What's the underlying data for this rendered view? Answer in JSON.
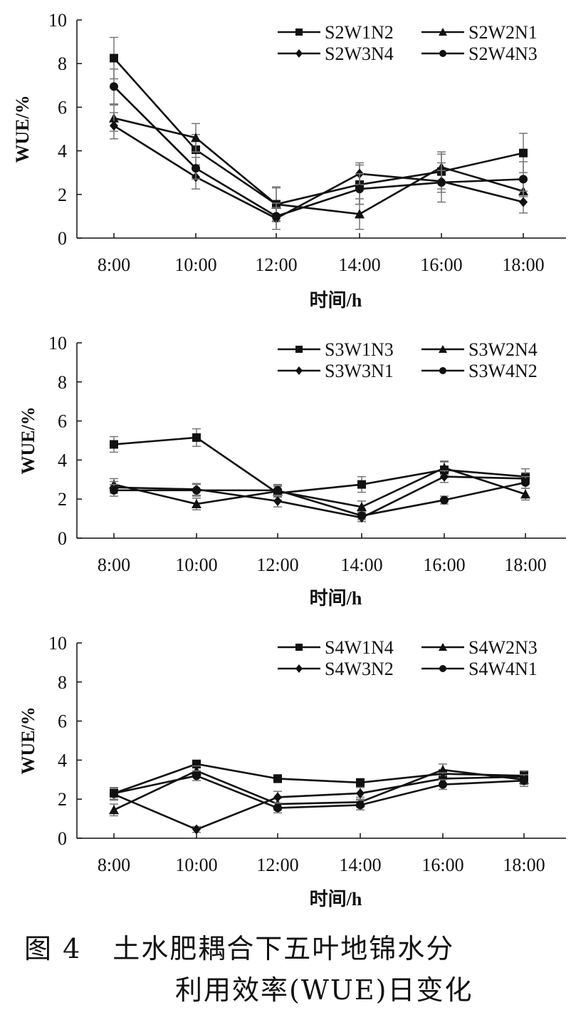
{
  "caption": {
    "fig_label": "图 4",
    "title_line1": "土水肥耦合下五叶地锦水分",
    "title_line2": "利用效率(WUE)日变化"
  },
  "colors": {
    "ink": "#111111",
    "error_bar": "#777777"
  },
  "chart_data": [
    {
      "type": "line",
      "title": "",
      "xlabel": "时间/h",
      "ylabel": "WUE/%",
      "categories": [
        "8:00",
        "10:00",
        "12:00",
        "14:00",
        "16:00",
        "18:00"
      ],
      "ylim": [
        0,
        10
      ],
      "yticks": [
        0,
        2,
        4,
        6,
        8,
        10
      ],
      "grid": false,
      "legend_position": "top-right",
      "series": [
        {
          "name": "S2W1N2",
          "marker": "square",
          "values": [
            8.25,
            4.05,
            1.55,
            2.45,
            3.05,
            3.9
          ],
          "errors": [
            0.95,
            0.7,
            0.8,
            0.9,
            0.8,
            0.9
          ]
        },
        {
          "name": "S2W2N1",
          "marker": "triangle",
          "values": [
            5.5,
            4.6,
            1.55,
            1.1,
            3.25,
            2.15
          ],
          "errors": [
            0.6,
            0.65,
            0.75,
            0.7,
            0.7,
            0.5
          ]
        },
        {
          "name": "S2W3N4",
          "marker": "diamond",
          "values": [
            5.15,
            2.8,
            0.9,
            2.95,
            2.6,
            1.65
          ],
          "errors": [
            0.6,
            0.55,
            0.5,
            0.5,
            0.5,
            0.5
          ]
        },
        {
          "name": "S2W4N3",
          "marker": "circle",
          "values": [
            6.95,
            3.2,
            1.0,
            2.25,
            2.55,
            2.7
          ],
          "errors": [
            0.8,
            0.5,
            0.6,
            0.7,
            0.9,
            0.8
          ]
        }
      ]
    },
    {
      "type": "line",
      "title": "",
      "xlabel": "时间/h",
      "ylabel": "WUE/%",
      "categories": [
        "8:00",
        "10:00",
        "12:00",
        "14:00",
        "16:00",
        "18:00"
      ],
      "ylim": [
        0,
        10
      ],
      "yticks": [
        0,
        2,
        4,
        6,
        8,
        10
      ],
      "grid": false,
      "legend_position": "top-right",
      "series": [
        {
          "name": "S3W1N3",
          "marker": "square",
          "values": [
            4.8,
            5.15,
            2.3,
            2.75,
            3.5,
            3.15
          ],
          "errors": [
            0.4,
            0.45,
            0.35,
            0.4,
            0.4,
            0.4
          ]
        },
        {
          "name": "S3W2N4",
          "marker": "triangle",
          "values": [
            2.75,
            1.75,
            2.4,
            1.6,
            3.6,
            2.25
          ],
          "errors": [
            0.3,
            0.3,
            0.3,
            0.3,
            0.35,
            0.3
          ]
        },
        {
          "name": "S3W3N1",
          "marker": "diamond",
          "values": [
            2.6,
            2.5,
            1.9,
            1.05,
            3.15,
            3.05
          ],
          "errors": [
            0.3,
            0.3,
            0.3,
            0.2,
            0.3,
            0.3
          ]
        },
        {
          "name": "S3W4N2",
          "marker": "circle",
          "values": [
            2.45,
            2.45,
            2.45,
            1.15,
            1.95,
            2.85
          ],
          "errors": [
            0.3,
            0.3,
            0.3,
            0.2,
            0.2,
            0.3
          ]
        }
      ]
    },
    {
      "type": "line",
      "title": "",
      "xlabel": "时间/h",
      "ylabel": "WUE/%",
      "categories": [
        "8:00",
        "10:00",
        "12:00",
        "14:00",
        "16:00",
        "18:00"
      ],
      "ylim": [
        0,
        10
      ],
      "yticks": [
        0,
        2,
        4,
        6,
        8,
        10
      ],
      "grid": false,
      "legend_position": "top-right",
      "series": [
        {
          "name": "S4W1N4",
          "marker": "square",
          "values": [
            2.3,
            3.8,
            3.05,
            2.85,
            3.3,
            3.2
          ],
          "errors": [
            0.3,
            0.2,
            0.2,
            0.2,
            0.2,
            0.2
          ]
        },
        {
          "name": "S4W2N3",
          "marker": "triangle",
          "values": [
            1.45,
            3.45,
            1.75,
            1.85,
            3.5,
            3.0
          ],
          "errors": [
            0.3,
            0.25,
            0.3,
            0.25,
            0.3,
            0.25
          ]
        },
        {
          "name": "S4W3N2",
          "marker": "diamond",
          "values": [
            2.25,
            0.45,
            2.1,
            2.3,
            3.05,
            3.15
          ],
          "errors": [
            0.3,
            0.15,
            0.3,
            0.3,
            0.3,
            0.3
          ]
        },
        {
          "name": "S4W4N1",
          "marker": "circle",
          "values": [
            2.3,
            3.2,
            1.55,
            1.7,
            2.75,
            2.95
          ],
          "errors": [
            0.3,
            0.25,
            0.25,
            0.25,
            0.25,
            0.3
          ]
        }
      ]
    }
  ]
}
